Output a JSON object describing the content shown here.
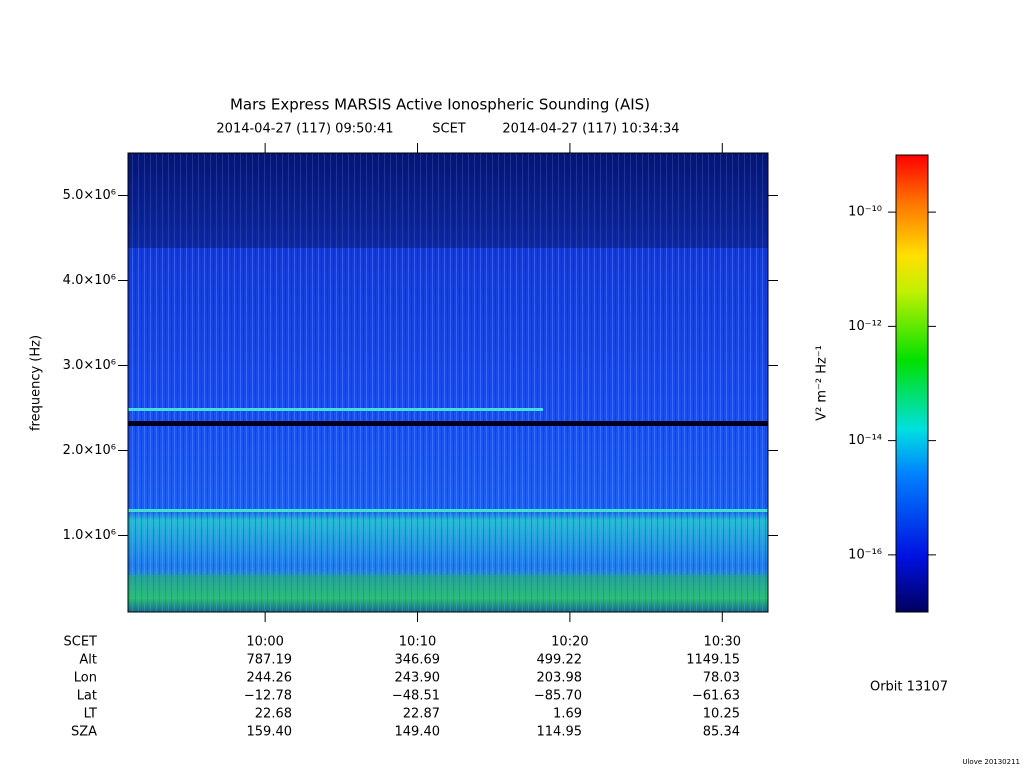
{
  "chart_data": {
    "type": "spectrogram",
    "title": "Mars Express MARSIS Active Ionospheric Sounding (AIS)",
    "subtitle": {
      "start": "2014-04-27 (117) 09:50:41",
      "label": "SCET",
      "end": "2014-04-27 (117) 10:34:34"
    },
    "y_label": "frequency (Hz)",
    "ylim": [
      100000,
      5500000
    ],
    "yticks": [
      {
        "value": 1000000,
        "label": "1.0×10⁶"
      },
      {
        "value": 2000000,
        "label": "2.0×10⁶"
      },
      {
        "value": 3000000,
        "label": "3.0×10⁶"
      },
      {
        "value": 4000000,
        "label": "4.0×10⁶"
      },
      {
        "value": 5000000,
        "label": "5.0×10⁶"
      }
    ],
    "xlim": [
      591,
      633
    ],
    "xticks": [
      {
        "value": 600,
        "label": "10:00"
      },
      {
        "value": 610,
        "label": "10:10"
      },
      {
        "value": 620,
        "label": "10:20"
      },
      {
        "value": 630,
        "label": "10:30"
      }
    ],
    "colorbar": {
      "label": "V² m⁻² Hz⁻¹",
      "log_scale": true,
      "clim": [
        1e-17,
        1e-09
      ],
      "ticks": [
        {
          "value": 1e-10,
          "label": "10⁻¹⁰"
        },
        {
          "value": 1e-12,
          "label": "10⁻¹²"
        },
        {
          "value": 1e-14,
          "label": "10⁻¹⁴"
        },
        {
          "value": 1e-16,
          "label": "10⁻¹⁶"
        }
      ]
    },
    "ephemeris": {
      "time_label": "SCET",
      "rows": [
        {
          "name": "Alt",
          "values": [
            "787.19",
            "346.69",
            "499.22",
            "1149.15"
          ]
        },
        {
          "name": "Lon",
          "values": [
            "244.26",
            "243.90",
            "203.98",
            "78.03"
          ]
        },
        {
          "name": "Lat",
          "values": [
            "−12.78",
            "−48.51",
            "−85.70",
            "−61.63"
          ]
        },
        {
          "name": "LT",
          "values": [
            "22.68",
            "22.87",
            "1.69",
            "10.25"
          ]
        },
        {
          "name": "SZA",
          "values": [
            "159.40",
            "149.40",
            "114.95",
            "85.34"
          ]
        }
      ]
    },
    "orbit": "Orbit 13107",
    "credit": "Ulove 20130211"
  }
}
